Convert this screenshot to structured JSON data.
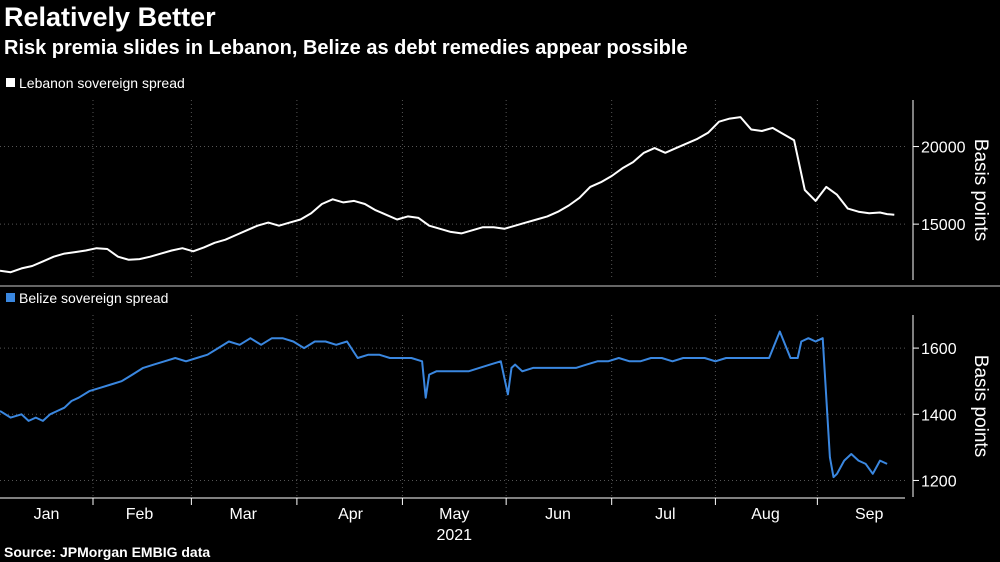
{
  "title": "Relatively Better",
  "subtitle": "Risk premia slides in Lebanon, Belize as debt remedies appear possible",
  "source": "Source: JPMorgan EMBIG data",
  "colors": {
    "background": "#000000",
    "lebanon": "#ffffff",
    "belize": "#3a87e0",
    "grid": "#555555"
  },
  "chart_data": [
    {
      "type": "line",
      "legend": "Lebanon sovereign spread",
      "ylabel": "Basis points",
      "ylim": [
        11400,
        23000
      ],
      "yticks": [
        15000,
        20000
      ],
      "ytick_labels": [
        "15000",
        "20000"
      ],
      "x_range": [
        0,
        253
      ],
      "series": [
        {
          "name": "Lebanon sovereign spread",
          "x": [
            0,
            3,
            6,
            9,
            12,
            15,
            18,
            21,
            24,
            27,
            30,
            33,
            36,
            39,
            42,
            45,
            48,
            51,
            54,
            57,
            60,
            63,
            66,
            69,
            72,
            75,
            78,
            81,
            84,
            87,
            90,
            93,
            96,
            99,
            102,
            105,
            108,
            111,
            114,
            117,
            120,
            123,
            126,
            129,
            132,
            135,
            138,
            141,
            144,
            147,
            150,
            153,
            156,
            159,
            162,
            165,
            168,
            171,
            174,
            177,
            180,
            183,
            186,
            189,
            192,
            195,
            198,
            201,
            204,
            207,
            210,
            213,
            216,
            219,
            222,
            225,
            228,
            231,
            234,
            237,
            240,
            243,
            246,
            248,
            250
          ],
          "y": [
            12000,
            11900,
            12150,
            12300,
            12600,
            12900,
            13100,
            13200,
            13300,
            13450,
            13400,
            12900,
            12700,
            12750,
            12900,
            13100,
            13300,
            13450,
            13250,
            13500,
            13800,
            14000,
            14300,
            14600,
            14900,
            15100,
            14900,
            15100,
            15300,
            15700,
            16300,
            16600,
            16400,
            16500,
            16300,
            15900,
            15600,
            15300,
            15500,
            15400,
            14900,
            14700,
            14500,
            14400,
            14600,
            14800,
            14800,
            14700,
            14900,
            15100,
            15300,
            15500,
            15800,
            16200,
            16700,
            17400,
            17700,
            18100,
            18600,
            19000,
            19600,
            19900,
            19600,
            19900,
            20200,
            20500,
            20900,
            21600,
            21800,
            21900,
            21100,
            21000,
            21200,
            20800,
            20400,
            17200,
            16500,
            17400,
            16900,
            16000,
            15800,
            15700,
            15750,
            15650,
            15600
          ]
        }
      ]
    },
    {
      "type": "line",
      "legend": "Belize sovereign spread",
      "ylabel": "Basis points",
      "ylim": [
        1150,
        1700
      ],
      "yticks": [
        1200,
        1400,
        1600
      ],
      "ytick_labels": [
        "1200",
        "1400",
        "1600"
      ],
      "x_range": [
        0,
        253
      ],
      "x_month_labels": [
        "Jan",
        "Feb",
        "Mar",
        "Apr",
        "May",
        "Jun",
        "Jul",
        "Aug",
        "Sep"
      ],
      "x_month_positions": [
        13,
        39,
        68,
        98,
        127,
        156,
        186,
        214,
        243
      ],
      "x_year_label": "2021",
      "x_year_position": 127,
      "series": [
        {
          "name": "Belize sovereign spread",
          "x": [
            0,
            3,
            6,
            8,
            10,
            12,
            14,
            16,
            18,
            20,
            22,
            25,
            28,
            31,
            34,
            37,
            40,
            43,
            46,
            49,
            52,
            55,
            58,
            61,
            64,
            67,
            70,
            73,
            76,
            79,
            82,
            85,
            88,
            91,
            94,
            97,
            100,
            103,
            106,
            109,
            112,
            115,
            118,
            119,
            120,
            122,
            125,
            128,
            131,
            134,
            137,
            140,
            142,
            143,
            144,
            146,
            149,
            152,
            155,
            158,
            161,
            164,
            167,
            170,
            173,
            176,
            179,
            182,
            185,
            188,
            191,
            194,
            197,
            200,
            203,
            206,
            209,
            212,
            215,
            218,
            221,
            223,
            224,
            226,
            228,
            230,
            232,
            233,
            234,
            236,
            238,
            240,
            242,
            244,
            246,
            248
          ],
          "y": [
            1410,
            1390,
            1400,
            1380,
            1390,
            1380,
            1400,
            1410,
            1420,
            1440,
            1450,
            1470,
            1480,
            1490,
            1500,
            1520,
            1540,
            1550,
            1560,
            1570,
            1560,
            1570,
            1580,
            1600,
            1620,
            1610,
            1630,
            1610,
            1630,
            1630,
            1620,
            1600,
            1620,
            1620,
            1610,
            1620,
            1570,
            1580,
            1580,
            1570,
            1570,
            1570,
            1560,
            1450,
            1520,
            1530,
            1530,
            1530,
            1530,
            1540,
            1550,
            1560,
            1460,
            1540,
            1550,
            1530,
            1540,
            1540,
            1540,
            1540,
            1540,
            1550,
            1560,
            1560,
            1570,
            1560,
            1560,
            1570,
            1570,
            1560,
            1570,
            1570,
            1570,
            1560,
            1570,
            1570,
            1570,
            1570,
            1570,
            1650,
            1570,
            1570,
            1620,
            1630,
            1620,
            1630,
            1270,
            1210,
            1220,
            1260,
            1280,
            1260,
            1250,
            1220,
            1260,
            1250
          ]
        }
      ]
    }
  ]
}
